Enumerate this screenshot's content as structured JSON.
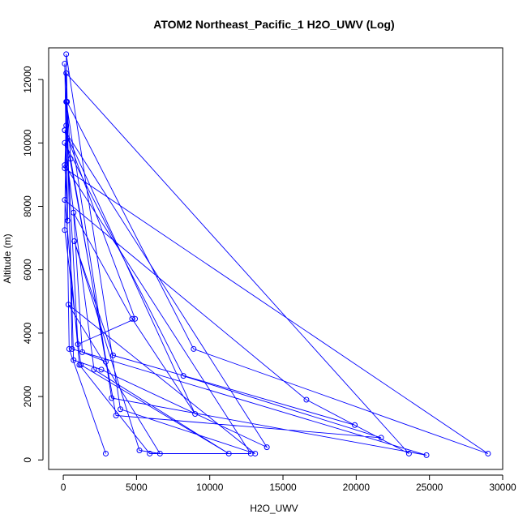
{
  "chart_data": {
    "type": "scatter",
    "title": "ATOM2 Northeast_Pacific_1 H2O_UWV (Log)",
    "xlabel": "H2O_UWV",
    "ylabel": "Altitude (m)",
    "xlim": [
      -1000,
      30000
    ],
    "ylim": [
      -300,
      13000
    ],
    "xticks": [
      0,
      5000,
      10000,
      15000,
      20000,
      25000,
      30000
    ],
    "xtick_labels": [
      "0",
      "5000",
      "10000",
      "15000",
      "20000",
      "25000",
      "30000"
    ],
    "yticks": [
      0,
      2000,
      4000,
      6000,
      8000,
      10000,
      12000
    ],
    "ytick_labels": [
      "0",
      "2000",
      "4000",
      "6000",
      "8000",
      "10000",
      "12000"
    ],
    "grid": false,
    "color": "#0000ff",
    "marker": "open-circle",
    "connected": true,
    "series": [
      {
        "x": [
          2900,
          400,
          100,
          250,
          8900,
          29000,
          100,
          250,
          500,
          2900,
          1300,
          700,
          4700,
          9000,
          100,
          4900,
          1000,
          200,
          300,
          100,
          12800,
          5900,
          1100,
          100,
          16600,
          23600,
          200,
          100,
          1200,
          11300,
          2100,
          100,
          8200,
          21700,
          3600,
          100,
          13900,
          2600,
          700,
          200,
          3300,
          24800,
          600,
          200,
          3900,
          13100,
          350,
          6600,
          5200,
          750,
          3400,
          19900
        ],
        "y": [
          200,
          3500,
          12500,
          11300,
          3500,
          200,
          9200,
          11300,
          9500,
          3100,
          3400,
          7800,
          4450,
          1450,
          10400,
          4450,
          3650,
          10550,
          7550,
          9300,
          200,
          200,
          3000,
          8200,
          1900,
          200,
          12200,
          7250,
          3000,
          200,
          2850,
          10000,
          2650,
          700,
          1400,
          10400,
          400,
          2850,
          3150,
          11300,
          1950,
          150,
          3500,
          12800,
          1600,
          200,
          4900,
          200,
          300,
          6900,
          3300,
          1100
        ]
      }
    ]
  }
}
